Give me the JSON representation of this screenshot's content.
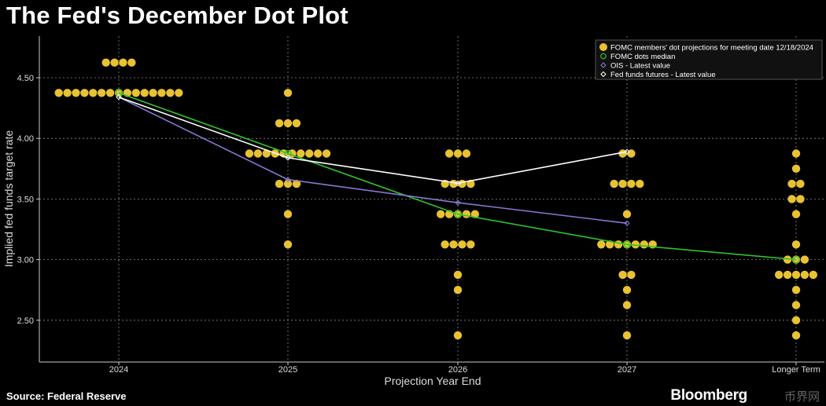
{
  "title": "The Fed's December Dot Plot",
  "source": "Source: Federal Reserve",
  "brand": "Bloomberg",
  "watermark": "币界网",
  "chart_data": {
    "type": "scatter",
    "xlabel": "Projection Year End",
    "ylabel": "Implied fed funds target rate",
    "categories": [
      "2024",
      "2025",
      "2026",
      "2027",
      "Longer Term"
    ],
    "ylim": [
      2.25,
      4.8
    ],
    "yticks": [
      2.5,
      3.0,
      3.5,
      4.0,
      4.5
    ],
    "ytick_labels": [
      "2.50",
      "3.00",
      "3.50",
      "4.00",
      "4.50"
    ],
    "grid": true,
    "legend_position": "top-right",
    "colors": {
      "dots": "#e8c233",
      "median": "#2ec22e",
      "ois": "#8878d6",
      "futures": "#ffffff",
      "grid": "#8a8a8a"
    },
    "dots": [
      {
        "category": "2024",
        "values": [
          {
            "rate": 4.625,
            "count": 4
          },
          {
            "rate": 4.375,
            "count": 15
          }
        ]
      },
      {
        "category": "2025",
        "values": [
          {
            "rate": 4.375,
            "count": 1
          },
          {
            "rate": 4.125,
            "count": 3
          },
          {
            "rate": 3.875,
            "count": 10
          },
          {
            "rate": 3.625,
            "count": 3
          },
          {
            "rate": 3.375,
            "count": 1
          },
          {
            "rate": 3.125,
            "count": 1
          }
        ]
      },
      {
        "category": "2026",
        "values": [
          {
            "rate": 3.875,
            "count": 3
          },
          {
            "rate": 3.625,
            "count": 4
          },
          {
            "rate": 3.375,
            "count": 5
          },
          {
            "rate": 3.125,
            "count": 4
          },
          {
            "rate": 2.875,
            "count": 1
          },
          {
            "rate": 2.75,
            "count": 1
          },
          {
            "rate": 2.375,
            "count": 1
          }
        ]
      },
      {
        "category": "2027",
        "values": [
          {
            "rate": 3.875,
            "count": 2
          },
          {
            "rate": 3.625,
            "count": 4
          },
          {
            "rate": 3.375,
            "count": 1
          },
          {
            "rate": 3.125,
            "count": 7
          },
          {
            "rate": 2.875,
            "count": 2
          },
          {
            "rate": 2.75,
            "count": 1
          },
          {
            "rate": 2.625,
            "count": 1
          },
          {
            "rate": 2.375,
            "count": 1
          }
        ]
      },
      {
        "category": "Longer Term",
        "values": [
          {
            "rate": 3.875,
            "count": 1
          },
          {
            "rate": 3.75,
            "count": 1
          },
          {
            "rate": 3.625,
            "count": 2
          },
          {
            "rate": 3.5,
            "count": 2
          },
          {
            "rate": 3.375,
            "count": 1
          },
          {
            "rate": 3.125,
            "count": 1
          },
          {
            "rate": 3.0,
            "count": 3
          },
          {
            "rate": 2.875,
            "count": 5
          },
          {
            "rate": 2.75,
            "count": 1
          },
          {
            "rate": 2.625,
            "count": 1
          },
          {
            "rate": 2.5,
            "count": 1
          },
          {
            "rate": 2.375,
            "count": 1
          }
        ]
      }
    ],
    "series": [
      {
        "name": "FOMC dots median",
        "key": "median",
        "values": [
          4.375,
          3.875,
          3.375,
          3.125,
          3.0
        ]
      },
      {
        "name": "OIS - Latest value",
        "key": "ois",
        "values": [
          4.34,
          3.66,
          3.47,
          3.3,
          null
        ]
      },
      {
        "name": "Fed funds futures - Latest value",
        "key": "futures",
        "values": [
          4.34,
          3.84,
          3.63,
          3.89,
          null
        ]
      }
    ],
    "legend": [
      "FOMC members' dot projections for meeting date 12/18/2024",
      "FOMC dots median",
      "OIS - Latest value",
      "Fed funds futures - Latest value"
    ]
  }
}
